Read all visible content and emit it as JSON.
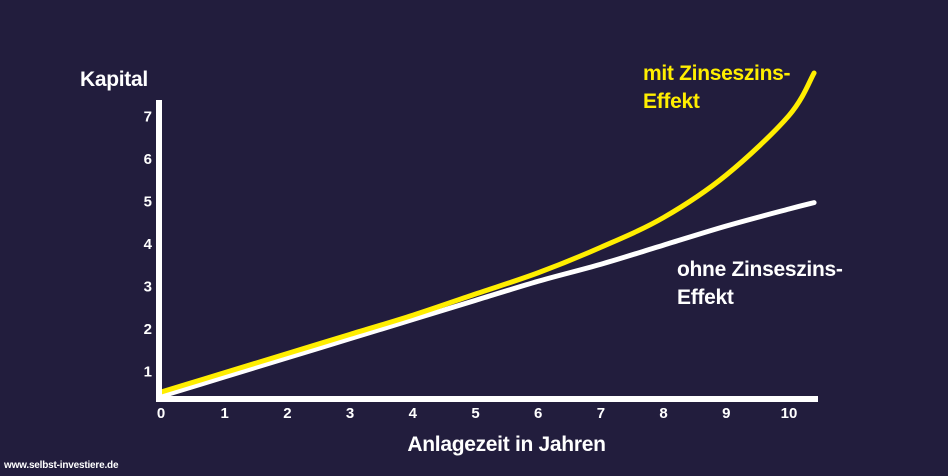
{
  "chart_data": {
    "type": "line",
    "title": "",
    "xlabel": "Anlagezeit in Jahren",
    "ylabel": "Kapital",
    "x": [
      0,
      1,
      2,
      3,
      4,
      5,
      6,
      7,
      8,
      9,
      10,
      10.4
    ],
    "x_ticks": [
      "0",
      "1",
      "2",
      "3",
      "4",
      "5",
      "6",
      "7",
      "8",
      "9",
      "10"
    ],
    "y_ticks": [
      "1",
      "2",
      "3",
      "4",
      "5",
      "6",
      "7"
    ],
    "xlim": [
      0,
      10.5
    ],
    "ylim": [
      0,
      7.3
    ],
    "grid": false,
    "legend": "inline annotations",
    "series": [
      {
        "name": "mit Zinseszins-Effekt",
        "color": "#ffee00",
        "values": [
          0.5,
          0.95,
          1.4,
          1.85,
          2.3,
          2.8,
          3.3,
          3.9,
          4.6,
          5.6,
          7.0,
          8.0
        ]
      },
      {
        "name": "ohne Zinseszins-Effekt",
        "color": "#ffffff",
        "values": [
          0.4,
          0.85,
          1.3,
          1.75,
          2.2,
          2.65,
          3.1,
          3.5,
          3.95,
          4.4,
          4.8,
          4.95
        ]
      }
    ],
    "annotations": [
      {
        "text": "mit Zinseszins-\nEffekt",
        "color": "#ffee00",
        "position": "upper right near curve end"
      },
      {
        "text": "ohne Zinseszins-\nEffekt",
        "color": "#ffffff",
        "position": "right, below straight line"
      }
    ]
  },
  "labels": {
    "ylabel": "Kapital",
    "xlabel": "Anlagezeit in Jahren",
    "with_line1": "mit Zinseszins-",
    "with_line2": "Effekt",
    "without_line1": "ohne Zinseszins-",
    "without_line2": "Effekt",
    "watermark": "www.selbst-investiere.de"
  },
  "colors": {
    "background": "#221d3d",
    "compound": "#ffee00",
    "simple": "#ffffff",
    "axis": "#ffffff"
  }
}
